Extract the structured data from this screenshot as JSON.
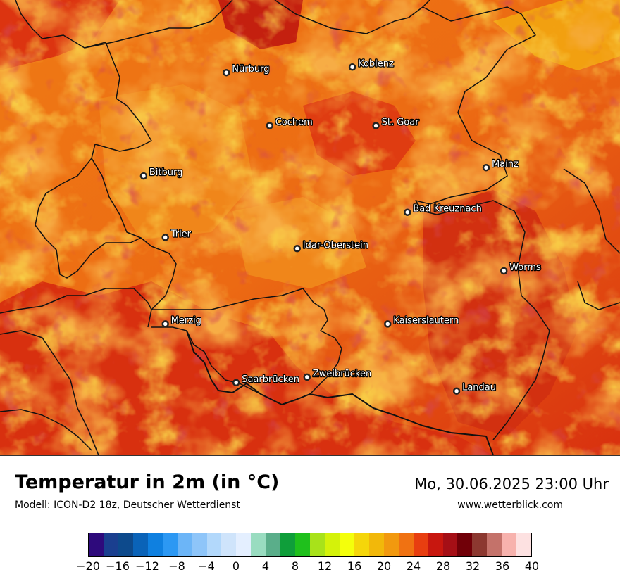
{
  "map": {
    "cities": [
      {
        "name": "Nürburg",
        "lon": 6.95,
        "lat": 50.34
      },
      {
        "name": "Koblenz",
        "lon": 7.59,
        "lat": 50.36
      },
      {
        "name": "Cochem",
        "lon": 7.17,
        "lat": 50.15
      },
      {
        "name": "St. Goar",
        "lon": 7.71,
        "lat": 50.15
      },
      {
        "name": "Bitburg",
        "lon": 6.53,
        "lat": 49.97
      },
      {
        "name": "Mainz",
        "lon": 8.27,
        "lat": 50.0
      },
      {
        "name": "Bad Kreuznach",
        "lon": 7.87,
        "lat": 49.84
      },
      {
        "name": "Trier",
        "lon": 6.64,
        "lat": 49.75
      },
      {
        "name": "Idar-Oberstein",
        "lon": 7.31,
        "lat": 49.71
      },
      {
        "name": "Worms",
        "lon": 8.36,
        "lat": 49.63
      },
      {
        "name": "Merzig",
        "lon": 6.64,
        "lat": 49.44
      },
      {
        "name": "Kaiserslautern",
        "lon": 7.77,
        "lat": 49.44
      },
      {
        "name": "Saarbrücken",
        "lon": 7.0,
        "lat": 49.23
      },
      {
        "name": "Zweibrücken",
        "lon": 7.36,
        "lat": 49.25
      },
      {
        "name": "Landau",
        "lon": 8.12,
        "lat": 49.2
      }
    ]
  },
  "header": {
    "title": "Temperatur in 2m (in °C)",
    "subtitle": "Modell: ICON-D2 18z, Deutscher Wetterdienst",
    "datetime": "Mo, 30.06.2025 23:00 Uhr",
    "website": "www.wetterblick.com"
  },
  "legend": {
    "colors": [
      "#2e0a7c",
      "#1a3f8f",
      "#0d4a8c",
      "#0a63b8",
      "#0f80e0",
      "#2c98f3",
      "#6cb5f7",
      "#8ec5f9",
      "#b2d8fb",
      "#cfe4fb",
      "#e4efff",
      "#99dcc0",
      "#5aae8a",
      "#0f9e3a",
      "#1fc01c",
      "#a8e21a",
      "#d4f20a",
      "#f4ff0b",
      "#f5d60a",
      "#f2b80a",
      "#f2990f",
      "#f07212",
      "#e83e10",
      "#c8170f",
      "#a50f16",
      "#710008",
      "#8c3830",
      "#c4726a",
      "#f7b2ad",
      "#fde1e1"
    ],
    "ticks": [
      "−20",
      "−16",
      "−12",
      "−8",
      "−4",
      "0",
      "4",
      "8",
      "12",
      "16",
      "20",
      "24",
      "28",
      "32",
      "36",
      "40"
    ]
  }
}
